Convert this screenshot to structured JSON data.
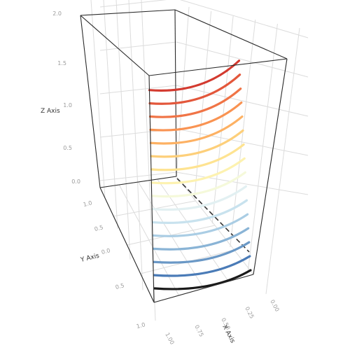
{
  "chart_data": {
    "type": "line",
    "title": "",
    "xlabel": "X Axis",
    "ylabel": "Y Axis",
    "zlabel": "Z Axis",
    "x_ticks": [
      "1.00",
      "0.75",
      "0.50",
      "0.25",
      "0.00"
    ],
    "y_ticks": [
      "1.0",
      "0.5",
      "0.0",
      "0.5",
      "1.0"
    ],
    "z_ticks": [
      "0.0",
      "0.5",
      "1.0",
      "1.5",
      "2.0"
    ],
    "xlim": [
      0,
      1
    ],
    "ylim": [
      -1,
      1
    ],
    "zlim": [
      0,
      2
    ],
    "grid": true,
    "colormap": "RdYlBu",
    "series": [
      {
        "z": 0.0,
        "color": "#1a1a1a"
      },
      {
        "z": 0.1,
        "color": "#4a7bb7"
      },
      {
        "z": 0.2,
        "color": "#6a98c6"
      },
      {
        "z": 0.3,
        "color": "#8ab4d6"
      },
      {
        "z": 0.4,
        "color": "#aacde4"
      },
      {
        "z": 0.5,
        "color": "#c8e2ee"
      },
      {
        "z": 0.6,
        "color": "#e2f0f2"
      },
      {
        "z": 0.7,
        "color": "#f5f9da"
      },
      {
        "z": 0.8,
        "color": "#fdf2b0"
      },
      {
        "z": 0.9,
        "color": "#fee391"
      },
      {
        "z": 1.0,
        "color": "#fdcf7a"
      },
      {
        "z": 1.1,
        "color": "#fdb163"
      },
      {
        "z": 1.2,
        "color": "#f99352"
      },
      {
        "z": 1.3,
        "color": "#f07446"
      },
      {
        "z": 1.4,
        "color": "#e3573b"
      },
      {
        "z": 1.5,
        "color": "#d33a2f"
      }
    ]
  }
}
